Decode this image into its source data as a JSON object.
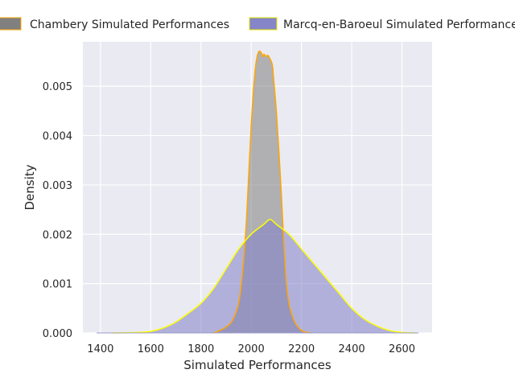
{
  "chart_data": {
    "type": "area",
    "title": "",
    "xlabel": "Simulated Performances",
    "ylabel": "Density",
    "xlim": [
      1330,
      2720
    ],
    "ylim": [
      0,
      0.0059
    ],
    "x_ticks": [
      1400,
      1600,
      1800,
      2000,
      2200,
      2400,
      2600
    ],
    "x_tick_labels": [
      "1400",
      "1600",
      "1800",
      "2000",
      "2200",
      "2400",
      "2600"
    ],
    "y_ticks": [
      0,
      0.001,
      0.002,
      0.003,
      0.004,
      0.005
    ],
    "y_tick_labels": [
      "0.000",
      "0.001",
      "0.002",
      "0.003",
      "0.004",
      "0.005"
    ],
    "grid": true,
    "legend_position": "top",
    "series": [
      {
        "name": "Chambery Simulated Performances",
        "fill_color": "#808080",
        "line_color": "#FFA500",
        "x": [
          1850,
          1875,
          1900,
          1925,
          1950,
          1965,
          1980,
          1990,
          2000,
          2010,
          2020,
          2030,
          2040,
          2045,
          2050,
          2060,
          2065,
          2070,
          2080,
          2085,
          2090,
          2100,
          2110,
          2120,
          2130,
          2140,
          2150,
          2160,
          2175,
          2190,
          2200,
          2220,
          2240
        ],
        "y": [
          0,
          5e-05,
          0.00012,
          0.00025,
          0.0006,
          0.0012,
          0.0022,
          0.0032,
          0.0042,
          0.005,
          0.0055,
          0.0057,
          0.00568,
          0.0056,
          0.00565,
          0.0056,
          0.00563,
          0.0056,
          0.0055,
          0.0054,
          0.0051,
          0.0045,
          0.0037,
          0.0028,
          0.0018,
          0.001,
          0.0006,
          0.0004,
          0.0002,
          0.0001,
          5e-05,
          1e-05,
          0
        ]
      },
      {
        "name": "Marcq-en-Baroeul Simulated Performances",
        "fill_color": "#8080c8",
        "line_color": "#FFFF00",
        "x": [
          1450,
          1550,
          1600,
          1650,
          1700,
          1750,
          1800,
          1850,
          1900,
          1950,
          2000,
          2050,
          2075,
          2100,
          2150,
          2200,
          2250,
          2300,
          2350,
          2400,
          2450,
          2500,
          2550,
          2600,
          2650
        ],
        "y": [
          0,
          1e-05,
          3e-05,
          0.0001,
          0.00022,
          0.0004,
          0.0006,
          0.0009,
          0.0013,
          0.0017,
          0.002,
          0.0022,
          0.0023,
          0.0022,
          0.002,
          0.0017,
          0.0014,
          0.0011,
          0.0008,
          0.0005,
          0.00028,
          0.00014,
          5e-05,
          1e-05,
          0
        ]
      }
    ]
  }
}
